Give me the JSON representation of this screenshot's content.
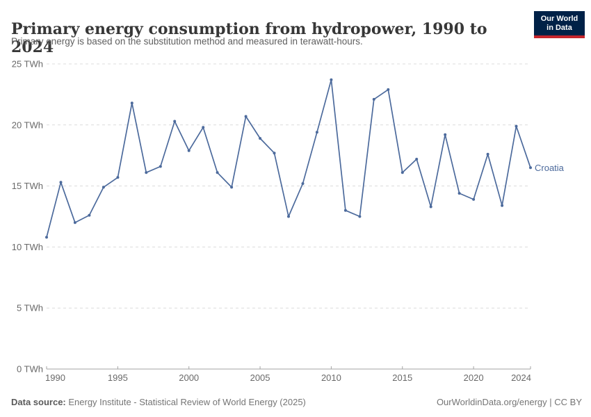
{
  "header": {
    "title": "Primary energy consumption from hydropower, 1990 to 2024",
    "subtitle": "Primary energy is based on the substitution method and measured in terawatt-hours."
  },
  "logo": {
    "line1": "Our World",
    "line2": "in Data"
  },
  "chart_data": {
    "type": "line",
    "title": "Primary energy consumption from hydropower, 1990 to 2024",
    "x": [
      1990,
      1991,
      1992,
      1993,
      1994,
      1995,
      1996,
      1997,
      1998,
      1999,
      2000,
      2001,
      2002,
      2003,
      2004,
      2005,
      2006,
      2007,
      2008,
      2009,
      2010,
      2011,
      2012,
      2013,
      2014,
      2015,
      2016,
      2017,
      2018,
      2019,
      2020,
      2021,
      2022,
      2023,
      2024
    ],
    "series": [
      {
        "name": "Croatia",
        "color": "#4c6a9c",
        "values": [
          10.8,
          15.3,
          12.0,
          12.6,
          14.9,
          15.7,
          21.8,
          16.1,
          16.6,
          20.3,
          17.9,
          19.8,
          16.1,
          14.9,
          20.7,
          18.9,
          17.7,
          12.5,
          15.2,
          19.4,
          23.7,
          13.0,
          12.5,
          22.1,
          22.9,
          16.1,
          17.2,
          13.3,
          19.2,
          14.4,
          13.9,
          17.6,
          13.4,
          19.9,
          16.5
        ]
      }
    ],
    "ylim": [
      0,
      25
    ],
    "unit": "TWh",
    "y_ticks": [
      {
        "value": 0,
        "label": "0 TWh"
      },
      {
        "value": 5,
        "label": "5 TWh"
      },
      {
        "value": 10,
        "label": "10 TWh"
      },
      {
        "value": 15,
        "label": "15 TWh"
      },
      {
        "value": 20,
        "label": "20 TWh"
      },
      {
        "value": 25,
        "label": "25 TWh"
      }
    ],
    "x_ticks": [
      1990,
      1995,
      2000,
      2005,
      2010,
      2015,
      2020,
      2024
    ],
    "grid": "horizontal-dashed",
    "legend": "series-label-right-of-line"
  },
  "colors": {
    "line": "#4c6a9c",
    "grid": "#dcdcdc",
    "axis": "#a3a3a3",
    "tick_label": "#696969",
    "title": "#373737",
    "subtitle": "#5f5f5f"
  },
  "footer": {
    "source_label": "Data source:",
    "source_text": " Energy Institute - Statistical Review of World Energy (2025)",
    "credit": "OurWorldinData.org/energy | CC BY"
  }
}
